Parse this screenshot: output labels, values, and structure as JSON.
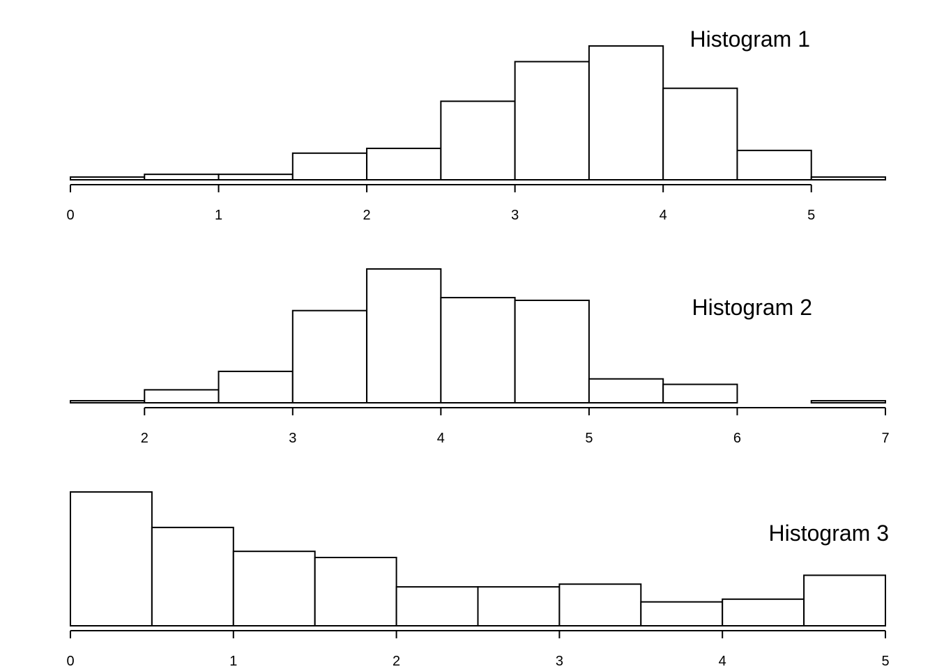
{
  "chart_data": [
    {
      "type": "bar",
      "title": "Histogram 1",
      "bin_edges": [
        0,
        0.5,
        1,
        1.5,
        2,
        2.5,
        3,
        3.5,
        4,
        4.5,
        5,
        5.5
      ],
      "values": [
        0.4,
        0.8,
        0.8,
        3.9,
        4.6,
        11.5,
        17.3,
        19.6,
        13.4,
        4.3,
        0.4
      ],
      "xlim": [
        0,
        5.5
      ],
      "ylim": [
        0,
        20
      ],
      "xticks": [
        0,
        1,
        2,
        3,
        4,
        5
      ],
      "xlabel": "",
      "ylabel": "",
      "grid": false
    },
    {
      "type": "bar",
      "title": "Histogram 2",
      "bin_edges": [
        1.5,
        2,
        2.5,
        3,
        3.5,
        4,
        4.5,
        5,
        5.5,
        6,
        6.5,
        7
      ],
      "values": [
        0.3,
        1.9,
        4.6,
        13.5,
        19.6,
        15.4,
        15.0,
        3.5,
        2.7,
        0,
        0.3
      ],
      "xlim": [
        1.5,
        7
      ],
      "ylim": [
        0,
        20
      ],
      "xticks": [
        2,
        3,
        4,
        5,
        6,
        7
      ],
      "xlabel": "",
      "ylabel": "",
      "grid": false
    },
    {
      "type": "bar",
      "title": "Histogram 3",
      "bin_edges": [
        0,
        0.5,
        1,
        1.5,
        2,
        2.5,
        3,
        3.5,
        4,
        4.5,
        5
      ],
      "values": [
        19.6,
        14.4,
        10.9,
        10.0,
        5.7,
        5.7,
        6.1,
        3.5,
        3.9,
        7.4
      ],
      "xlim": [
        0,
        5
      ],
      "ylim": [
        0,
        20
      ],
      "xticks": [
        0,
        1,
        2,
        3,
        4,
        5
      ],
      "xlabel": "",
      "ylabel": "",
      "grid": false
    }
  ]
}
